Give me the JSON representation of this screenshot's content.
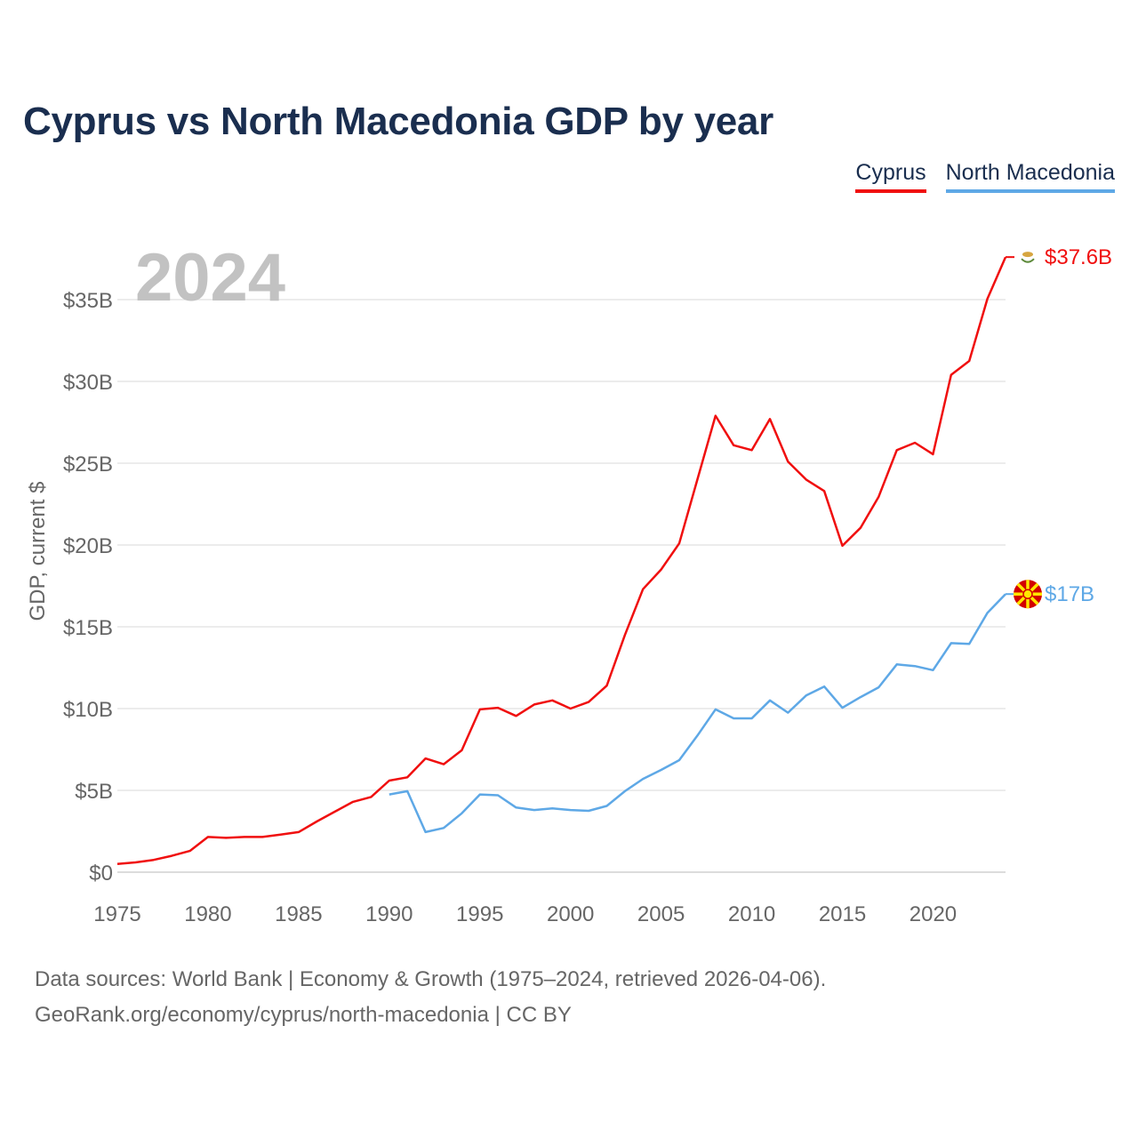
{
  "title": "Cyprus vs North Macedonia GDP by year",
  "legend": [
    {
      "name": "Cyprus",
      "color": "#f00f0f"
    },
    {
      "name": "North Macedonia",
      "color": "#5ea8e6"
    }
  ],
  "footer": {
    "line1": "Data sources: World Bank | Economy & Growth (1975–2024, retrieved 2026-04-06).",
    "line2": "GeoRank.org/economy/cyprus/north-macedonia | CC BY"
  },
  "chart_data": {
    "type": "line",
    "title": "Cyprus vs North Macedonia GDP by year",
    "year_label": "2024",
    "ylabel": "GDP, current $",
    "xlabel": "",
    "xlim": [
      1975,
      2024
    ],
    "ylim": [
      0,
      40
    ],
    "yticks": [
      0,
      5,
      10,
      15,
      20,
      25,
      30,
      35
    ],
    "ytick_labels": [
      "$0",
      "$5B",
      "$10B",
      "$15B",
      "$20B",
      "$25B",
      "$30B",
      "$35B"
    ],
    "xticks": [
      1975,
      1980,
      1985,
      1990,
      1995,
      2000,
      2005,
      2010,
      2015,
      2020
    ],
    "xtick_labels": [
      "1975",
      "1980",
      "1985",
      "1990",
      "1995",
      "2000",
      "2005",
      "2010",
      "2015",
      "2020"
    ],
    "grid": true,
    "legend_position": "top-right",
    "series": [
      {
        "name": "Cyprus",
        "color": "#f00f0f",
        "end_label": "$37.6B",
        "end_flag": "cyprus-flag-icon",
        "x": [
          1975,
          1976,
          1977,
          1978,
          1979,
          1980,
          1981,
          1982,
          1983,
          1984,
          1985,
          1986,
          1987,
          1988,
          1989,
          1990,
          1991,
          1992,
          1993,
          1994,
          1995,
          1996,
          1997,
          1998,
          1999,
          2000,
          2001,
          2002,
          2003,
          2004,
          2005,
          2006,
          2007,
          2008,
          2009,
          2010,
          2011,
          2012,
          2013,
          2014,
          2015,
          2016,
          2017,
          2018,
          2019,
          2020,
          2021,
          2022,
          2023,
          2024
        ],
        "values": [
          0.5,
          0.6,
          0.75,
          1.0,
          1.3,
          2.15,
          2.1,
          2.15,
          2.15,
          2.3,
          2.45,
          3.1,
          3.7,
          4.3,
          4.6,
          5.6,
          5.8,
          6.95,
          6.6,
          7.45,
          9.95,
          10.05,
          9.55,
          10.25,
          10.5,
          10.0,
          10.4,
          11.4,
          14.5,
          17.3,
          18.5,
          20.1,
          24.0,
          27.9,
          26.1,
          25.8,
          27.7,
          25.1,
          24.0,
          23.3,
          19.95,
          21.05,
          22.95,
          25.8,
          26.25,
          25.55,
          30.4,
          31.25,
          35.05,
          37.6
        ]
      },
      {
        "name": "North Macedonia",
        "color": "#5ea8e6",
        "end_label": "$17B",
        "end_flag": "north-macedonia-flag-icon",
        "x": [
          1990,
          1991,
          1992,
          1993,
          1994,
          1995,
          1996,
          1997,
          1998,
          1999,
          2000,
          2001,
          2002,
          2003,
          2004,
          2005,
          2006,
          2007,
          2008,
          2009,
          2010,
          2011,
          2012,
          2013,
          2014,
          2015,
          2016,
          2017,
          2018,
          2019,
          2020,
          2021,
          2022,
          2023,
          2024
        ],
        "values": [
          4.75,
          4.95,
          2.45,
          2.7,
          3.6,
          4.75,
          4.7,
          3.95,
          3.8,
          3.9,
          3.8,
          3.75,
          4.05,
          4.95,
          5.7,
          6.25,
          6.85,
          8.35,
          9.95,
          9.4,
          9.4,
          10.5,
          9.75,
          10.8,
          11.35,
          10.05,
          10.7,
          11.3,
          12.7,
          12.6,
          12.35,
          14.0,
          13.95,
          15.85,
          17.0
        ]
      }
    ]
  }
}
